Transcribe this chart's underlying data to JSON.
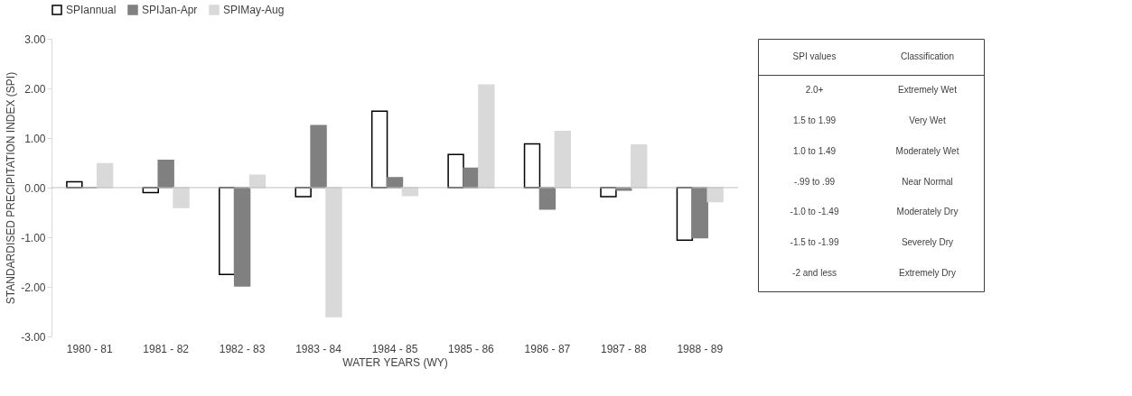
{
  "chart_data": [
    {
      "type": "bar",
      "xlabel": "WATER YEARS (WY)",
      "ylabel": "STANDARDISED PRECIPITATION INDEX (SPI)",
      "categories": [
        "1980 - 81",
        "1981 - 82",
        "1982 - 83",
        "1983 - 84",
        "1984 - 85",
        "1985 - 86",
        "1986 - 87",
        "1987 - 88",
        "1988 - 89"
      ],
      "series": [
        {
          "name": "SPIannual",
          "color": "#ffffff",
          "values": [
            0.12,
            -0.1,
            -1.75,
            -0.18,
            1.54,
            0.67,
            0.88,
            -0.18,
            -1.06
          ]
        },
        {
          "name": "SPIJan-Apr",
          "color": "#808080",
          "values": [
            0.0,
            0.55,
            -1.98,
            1.25,
            0.2,
            0.39,
            -0.43,
            -0.05,
            -1.01
          ]
        },
        {
          "name": "SPIMay-Aug",
          "color": "#d9d9d9",
          "values": [
            0.48,
            -0.4,
            0.25,
            -2.6,
            -0.16,
            2.07,
            1.13,
            0.86,
            -0.28
          ]
        }
      ],
      "ylim": [
        -3,
        3
      ],
      "yticks": [
        {
          "value": -3,
          "label": "-3.00"
        },
        {
          "value": -2,
          "label": "-2.00"
        },
        {
          "value": -1,
          "label": "-1.00"
        },
        {
          "value": 0,
          "label": "0.00"
        },
        {
          "value": 1,
          "label": "1.00"
        },
        {
          "value": 2,
          "label": "2.00"
        },
        {
          "value": 3,
          "label": "3.00"
        }
      ],
      "ref_lines": [
        {
          "axis": "y",
          "value": 0,
          "color": "#bfbfbf"
        }
      ],
      "grid": false,
      "legend": "top"
    },
    {
      "type": "other",
      "annotations": [
        "SPI values",
        "Classification",
        "2.0+",
        "Extremely Wet",
        "1.5 to 1.99",
        "Very Wet",
        "1.0 to 1.49",
        "Moderately Wet",
        "-.99 to .99",
        "Near Normal",
        "-1.0 to -1.49",
        "Moderately Dry",
        "-1.5 to -1.99",
        "Severely Dry",
        "-2 and less",
        "Extremely Dry"
      ]
    }
  ]
}
